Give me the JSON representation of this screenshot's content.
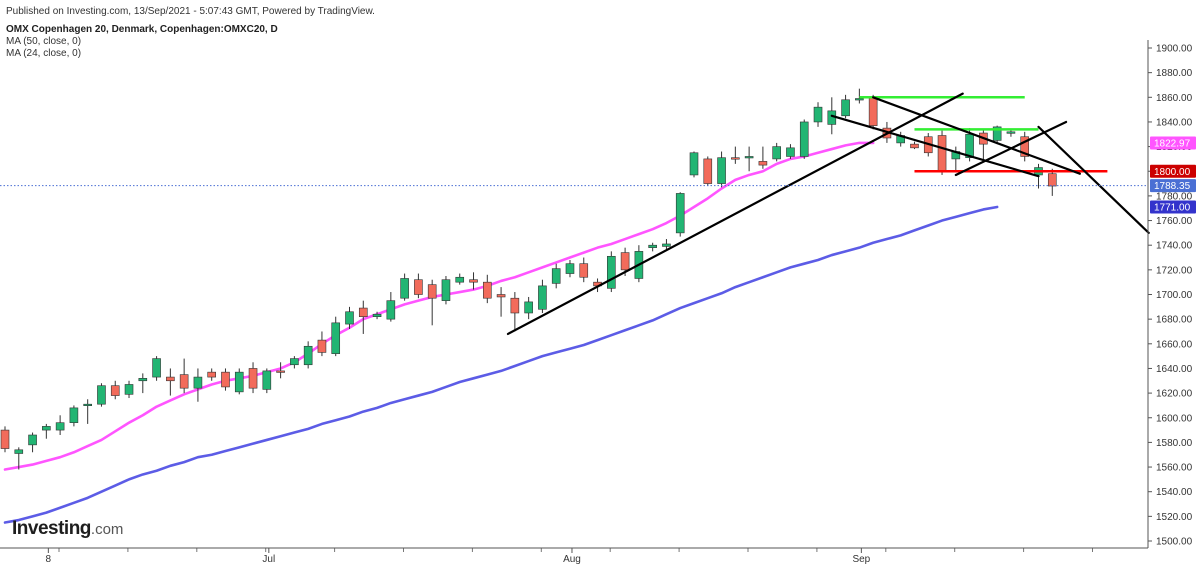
{
  "header": {
    "published": "Published on Investing.com, 13/Sep/2021 - 5:07:43 GMT, Powered by TradingView.",
    "symbol": "OMX Copenhagen 20, Denmark, Copenhagen:OMXC20, D",
    "ma50_label": "MA (50, close, 0)",
    "ma24_label": "MA (24, close, 0)"
  },
  "logo": {
    "text": "Investing",
    "suffix": ".com"
  },
  "colors": {
    "bull": "#22b573",
    "bear": "#f26b5b",
    "ma24": "#ff55ff",
    "ma50": "#5c5ce6",
    "price_line": "#4a6fd4",
    "support": "#ff0000",
    "resistance": "#33ee33",
    "trend": "#000000"
  },
  "chart_data": {
    "type": "candlestick",
    "title": "OMX Copenhagen 20, Denmark, Copenhagen:OMXC20, D",
    "y_axis": {
      "min": 1500,
      "max": 1900,
      "position": "right",
      "ticks": [
        1500,
        1520,
        1540,
        1560,
        1580,
        1600,
        1620,
        1640,
        1660,
        1680,
        1700,
        1720,
        1740,
        1760,
        1780,
        1800,
        1820,
        1840,
        1860,
        1880,
        1900
      ]
    },
    "x_labels": [
      {
        "label": "8",
        "index": 3
      },
      {
        "label": "Jul",
        "index": 19
      },
      {
        "label": "Aug",
        "index": 41
      },
      {
        "label": "Sep",
        "index": 62
      }
    ],
    "candles": [
      {
        "o": 1590,
        "h": 1593,
        "l": 1572,
        "c": 1575
      },
      {
        "o": 1571,
        "h": 1576,
        "l": 1558,
        "c": 1574
      },
      {
        "o": 1578,
        "h": 1588,
        "l": 1572,
        "c": 1586
      },
      {
        "o": 1590,
        "h": 1595,
        "l": 1583,
        "c": 1593
      },
      {
        "o": 1590,
        "h": 1602,
        "l": 1586,
        "c": 1596
      },
      {
        "o": 1596,
        "h": 1610,
        "l": 1593,
        "c": 1608
      },
      {
        "o": 1610,
        "h": 1615,
        "l": 1595,
        "c": 1611
      },
      {
        "o": 1611,
        "h": 1628,
        "l": 1609,
        "c": 1626
      },
      {
        "o": 1626,
        "h": 1630,
        "l": 1615,
        "c": 1618
      },
      {
        "o": 1619,
        "h": 1630,
        "l": 1616,
        "c": 1627
      },
      {
        "o": 1630,
        "h": 1636,
        "l": 1620,
        "c": 1632
      },
      {
        "o": 1633,
        "h": 1650,
        "l": 1630,
        "c": 1648
      },
      {
        "o": 1633,
        "h": 1640,
        "l": 1618,
        "c": 1630
      },
      {
        "o": 1635,
        "h": 1648,
        "l": 1620,
        "c": 1624
      },
      {
        "o": 1624,
        "h": 1640,
        "l": 1613,
        "c": 1633
      },
      {
        "o": 1637,
        "h": 1640,
        "l": 1630,
        "c": 1633
      },
      {
        "o": 1637,
        "h": 1640,
        "l": 1622,
        "c": 1625
      },
      {
        "o": 1621,
        "h": 1640,
        "l": 1619,
        "c": 1637
      },
      {
        "o": 1640,
        "h": 1645,
        "l": 1620,
        "c": 1624
      },
      {
        "o": 1623,
        "h": 1640,
        "l": 1620,
        "c": 1638
      },
      {
        "o": 1638,
        "h": 1645,
        "l": 1632,
        "c": 1637
      },
      {
        "o": 1643,
        "h": 1650,
        "l": 1640,
        "c": 1648
      },
      {
        "o": 1643,
        "h": 1662,
        "l": 1640,
        "c": 1658
      },
      {
        "o": 1663,
        "h": 1670,
        "l": 1650,
        "c": 1653
      },
      {
        "o": 1652,
        "h": 1682,
        "l": 1650,
        "c": 1677
      },
      {
        "o": 1676,
        "h": 1690,
        "l": 1672,
        "c": 1686
      },
      {
        "o": 1689,
        "h": 1695,
        "l": 1668,
        "c": 1682
      },
      {
        "o": 1682,
        "h": 1686,
        "l": 1680,
        "c": 1684
      },
      {
        "o": 1680,
        "h": 1702,
        "l": 1678,
        "c": 1695
      },
      {
        "o": 1697,
        "h": 1717,
        "l": 1695,
        "c": 1713
      },
      {
        "o": 1712,
        "h": 1717,
        "l": 1697,
        "c": 1700
      },
      {
        "o": 1708,
        "h": 1712,
        "l": 1675,
        "c": 1697
      },
      {
        "o": 1695,
        "h": 1715,
        "l": 1692,
        "c": 1712
      },
      {
        "o": 1710,
        "h": 1717,
        "l": 1708,
        "c": 1714
      },
      {
        "o": 1712,
        "h": 1718,
        "l": 1704,
        "c": 1710
      },
      {
        "o": 1710,
        "h": 1716,
        "l": 1693,
        "c": 1697
      },
      {
        "o": 1700,
        "h": 1706,
        "l": 1682,
        "c": 1698
      },
      {
        "o": 1697,
        "h": 1702,
        "l": 1670,
        "c": 1685
      },
      {
        "o": 1685,
        "h": 1698,
        "l": 1680,
        "c": 1694
      },
      {
        "o": 1688,
        "h": 1712,
        "l": 1685,
        "c": 1707
      },
      {
        "o": 1709,
        "h": 1725,
        "l": 1705,
        "c": 1721
      },
      {
        "o": 1717,
        "h": 1728,
        "l": 1714,
        "c": 1725
      },
      {
        "o": 1725,
        "h": 1730,
        "l": 1710,
        "c": 1714
      },
      {
        "o": 1710,
        "h": 1713,
        "l": 1702,
        "c": 1707
      },
      {
        "o": 1705,
        "h": 1735,
        "l": 1702,
        "c": 1731
      },
      {
        "o": 1734,
        "h": 1738,
        "l": 1715,
        "c": 1720
      },
      {
        "o": 1713,
        "h": 1740,
        "l": 1710,
        "c": 1735
      },
      {
        "o": 1738,
        "h": 1742,
        "l": 1735,
        "c": 1740
      },
      {
        "o": 1739,
        "h": 1745,
        "l": 1736,
        "c": 1741
      },
      {
        "o": 1750,
        "h": 1783,
        "l": 1747,
        "c": 1782
      },
      {
        "o": 1797,
        "h": 1816,
        "l": 1795,
        "c": 1815
      },
      {
        "o": 1810,
        "h": 1812,
        "l": 1788,
        "c": 1790
      },
      {
        "o": 1790,
        "h": 1816,
        "l": 1787,
        "c": 1811
      },
      {
        "o": 1811,
        "h": 1820,
        "l": 1806,
        "c": 1810
      },
      {
        "o": 1811,
        "h": 1820,
        "l": 1800,
        "c": 1812
      },
      {
        "o": 1808,
        "h": 1820,
        "l": 1802,
        "c": 1805
      },
      {
        "o": 1810,
        "h": 1823,
        "l": 1808,
        "c": 1820
      },
      {
        "o": 1812,
        "h": 1822,
        "l": 1810,
        "c": 1819
      },
      {
        "o": 1812,
        "h": 1842,
        "l": 1810,
        "c": 1840
      },
      {
        "o": 1840,
        "h": 1856,
        "l": 1836,
        "c": 1852
      },
      {
        "o": 1838,
        "h": 1860,
        "l": 1830,
        "c": 1849
      },
      {
        "o": 1845,
        "h": 1862,
        "l": 1843,
        "c": 1858
      },
      {
        "o": 1858,
        "h": 1867,
        "l": 1855,
        "c": 1859
      },
      {
        "o": 1860,
        "h": 1862,
        "l": 1834,
        "c": 1837
      },
      {
        "o": 1835,
        "h": 1840,
        "l": 1823,
        "c": 1827
      },
      {
        "o": 1823,
        "h": 1832,
        "l": 1820,
        "c": 1829
      },
      {
        "o": 1822,
        "h": 1824,
        "l": 1818,
        "c": 1819
      },
      {
        "o": 1828,
        "h": 1831,
        "l": 1812,
        "c": 1815
      },
      {
        "o": 1829,
        "h": 1833,
        "l": 1797,
        "c": 1800
      },
      {
        "o": 1810,
        "h": 1820,
        "l": 1800,
        "c": 1816
      },
      {
        "o": 1811,
        "h": 1835,
        "l": 1808,
        "c": 1830
      },
      {
        "o": 1831,
        "h": 1834,
        "l": 1808,
        "c": 1822
      },
      {
        "o": 1825,
        "h": 1837,
        "l": 1822,
        "c": 1836
      },
      {
        "o": 1831,
        "h": 1834,
        "l": 1828,
        "c": 1832
      },
      {
        "o": 1828,
        "h": 1832,
        "l": 1808,
        "c": 1812
      },
      {
        "o": 1797,
        "h": 1806,
        "l": 1786,
        "c": 1803
      },
      {
        "o": 1798,
        "h": 1802,
        "l": 1780,
        "c": 1788
      }
    ],
    "series": [
      {
        "name": "MA (24, close, 0)",
        "color": "#ff55ff",
        "values": [
          1558,
          1560,
          1562,
          1565,
          1568,
          1572,
          1577,
          1582,
          1589,
          1596,
          1602,
          1609,
          1614,
          1619,
          1623,
          1627,
          1630,
          1632,
          1634,
          1637,
          1640,
          1645,
          1652,
          1660,
          1667,
          1673,
          1680,
          1684,
          1688,
          1692,
          1695,
          1698,
          1700,
          1702,
          1704,
          1707,
          1711,
          1714,
          1718,
          1722,
          1726,
          1730,
          1734,
          1738,
          1741,
          1745,
          1749,
          1753,
          1758,
          1764,
          1771,
          1778,
          1786,
          1793,
          1797,
          1800,
          1806,
          1810,
          1812,
          1815,
          1818,
          1821,
          1823,
          1823
        ]
      },
      {
        "name": "MA (50, close, 0)",
        "color": "#5c5ce6",
        "values": [
          1515,
          1517,
          1520,
          1523,
          1527,
          1531,
          1535,
          1540,
          1545,
          1550,
          1554,
          1557,
          1561,
          1564,
          1568,
          1570,
          1573,
          1576,
          1579,
          1582,
          1585,
          1588,
          1591,
          1595,
          1598,
          1601,
          1605,
          1608,
          1612,
          1615,
          1618,
          1621,
          1625,
          1629,
          1632,
          1635,
          1638,
          1642,
          1646,
          1650,
          1653,
          1656,
          1659,
          1663,
          1667,
          1671,
          1675,
          1679,
          1684,
          1689,
          1693,
          1697,
          1701,
          1706,
          1710,
          1714,
          1718,
          1722,
          1725,
          1728,
          1732,
          1735,
          1738,
          1742,
          1745,
          1748,
          1752,
          1756,
          1760,
          1763,
          1766,
          1769,
          1771
        ]
      }
    ],
    "price_labels": [
      {
        "value": 1822.97,
        "text": "1822.97",
        "color": "#ff55ff"
      },
      {
        "value": 1800.0,
        "text": "1800.00",
        "color": "#cc0000"
      },
      {
        "value": 1788.35,
        "text": "1788.35",
        "color": "#4a6fd4"
      },
      {
        "value": 1771.0,
        "text": "1771.00",
        "color": "#3333cc"
      }
    ],
    "current_price": 1788.35,
    "horizontal_lines": [
      {
        "kind": "resistance",
        "value": 1860,
        "from": 62,
        "to": 74,
        "color": "#33ee33"
      },
      {
        "kind": "resistance",
        "value": 1834,
        "from": 66,
        "to": 75,
        "color": "#33ee33"
      },
      {
        "kind": "support",
        "value": 1800,
        "from": 66,
        "to": 80,
        "color": "#ff0000"
      }
    ],
    "trend_lines": [
      {
        "x1": 36.5,
        "y1": 1668,
        "x2": 69.5,
        "y2": 1863
      },
      {
        "x1": 60,
        "y1": 1845,
        "x2": 75,
        "y2": 1796
      },
      {
        "x1": 63,
        "y1": 1860,
        "x2": 78,
        "y2": 1798
      },
      {
        "x1": 69,
        "y1": 1797,
        "x2": 77,
        "y2": 1840
      },
      {
        "x1": 75,
        "y1": 1836,
        "x2": 83,
        "y2": 1750
      }
    ]
  }
}
